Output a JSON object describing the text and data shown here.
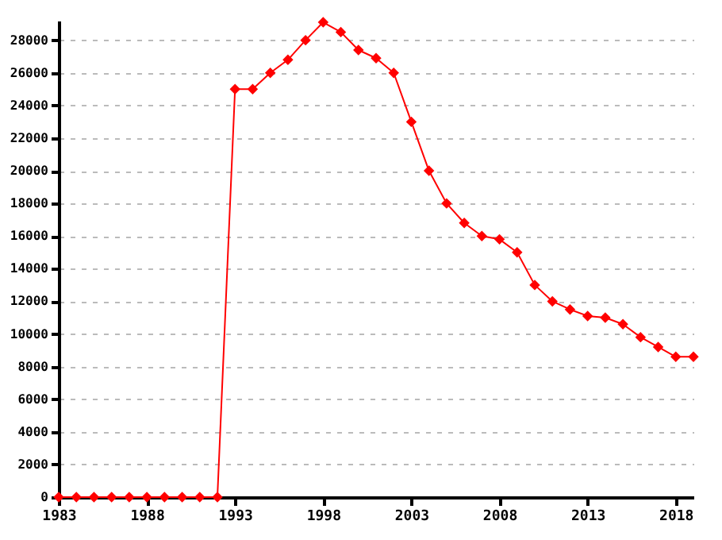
{
  "chart_data": {
    "type": "line",
    "x": [
      1983,
      1984,
      1985,
      1986,
      1987,
      1988,
      1989,
      1990,
      1991,
      1992,
      1993,
      1994,
      1995,
      1996,
      1997,
      1998,
      1999,
      2000,
      2001,
      2002,
      2003,
      2004,
      2005,
      2006,
      2007,
      2008,
      2009,
      2010,
      2011,
      2012,
      2013,
      2014,
      2015,
      2016,
      2017,
      2018,
      2019
    ],
    "series": [
      {
        "color": "#ff0000",
        "values": [
          0,
          0,
          0,
          0,
          0,
          0,
          0,
          0,
          0,
          0,
          25000,
          25000,
          26000,
          26800,
          28000,
          29100,
          28500,
          27400,
          26900,
          26000,
          23000,
          20000,
          18000,
          16800,
          16000,
          15800,
          15000,
          13000,
          12000,
          11500,
          11100,
          11000,
          10600,
          9800,
          9200,
          8600,
          8600
        ]
      }
    ],
    "xlim": [
      1983,
      2019
    ],
    "xticks": [
      1983,
      1988,
      1993,
      1998,
      2003,
      2008,
      2013,
      2018
    ],
    "ylim": [
      0,
      29200
    ],
    "yticks": [
      0,
      2000,
      4000,
      6000,
      8000,
      10000,
      12000,
      14000,
      16000,
      18000,
      20000,
      22000,
      24000,
      26000,
      28000
    ],
    "grid": "y",
    "marker": "diamond",
    "line_style": "solid"
  }
}
